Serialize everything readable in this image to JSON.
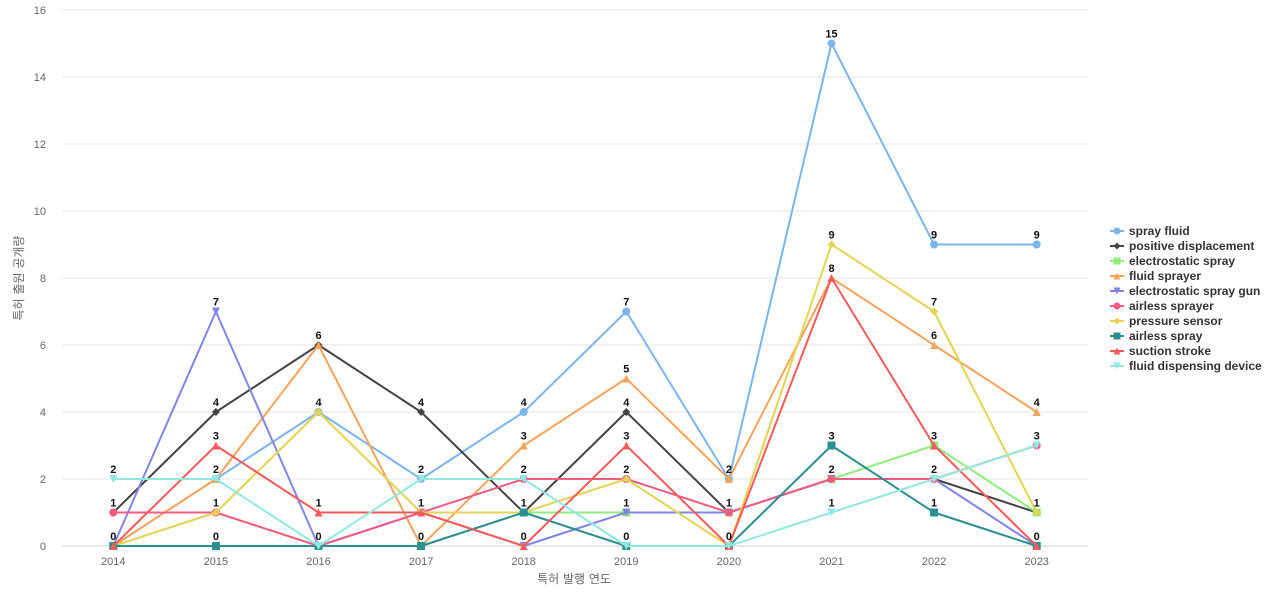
{
  "chart_data": {
    "type": "line",
    "title": "",
    "xlabel": "특허 발행 연도",
    "ylabel": "특허 출원 공개량",
    "ylim": [
      0,
      16
    ],
    "yticks": [
      0,
      2,
      4,
      6,
      8,
      10,
      12,
      14,
      16
    ],
    "grid": true,
    "legend_position": "right",
    "categories": [
      "2014",
      "2015",
      "2016",
      "2017",
      "2018",
      "2019",
      "2020",
      "2021",
      "2022",
      "2023"
    ],
    "series": [
      {
        "name": "spray fluid",
        "color": "#7cb5ec",
        "marker": "circle",
        "values": [
          0,
          2,
          4,
          2,
          4,
          7,
          2,
          15,
          9,
          9
        ]
      },
      {
        "name": "positive displacement",
        "color": "#434348",
        "marker": "diamond",
        "values": [
          1,
          4,
          6,
          4,
          1,
          4,
          1,
          2,
          2,
          1
        ]
      },
      {
        "name": "electrostatic spray",
        "color": "#90ed7d",
        "marker": "square",
        "values": [
          0,
          0,
          0,
          0,
          1,
          1,
          1,
          2,
          3,
          1
        ]
      },
      {
        "name": "fluid sprayer",
        "color": "#f7a35c",
        "marker": "triangle",
        "values": [
          0,
          2,
          6,
          0,
          3,
          5,
          2,
          8,
          6,
          4
        ]
      },
      {
        "name": "electrostatic spray gun",
        "color": "#8085e9",
        "marker": "triangle-down",
        "values": [
          0,
          7,
          0,
          1,
          0,
          1,
          1,
          2,
          2,
          0
        ]
      },
      {
        "name": "airless sprayer",
        "color": "#f15c80",
        "marker": "circle",
        "values": [
          1,
          1,
          0,
          1,
          2,
          2,
          1,
          2,
          2,
          3
        ]
      },
      {
        "name": "pressure sensor",
        "color": "#e4d354",
        "marker": "diamond",
        "values": [
          0,
          1,
          4,
          1,
          1,
          2,
          0,
          9,
          7,
          1
        ]
      },
      {
        "name": "airless spray",
        "color": "#2b908f",
        "marker": "square",
        "values": [
          0,
          0,
          0,
          0,
          1,
          0,
          0,
          3,
          1,
          0
        ]
      },
      {
        "name": "suction stroke",
        "color": "#f45b5b",
        "marker": "triangle",
        "values": [
          0,
          3,
          1,
          1,
          0,
          3,
          0,
          8,
          3,
          0
        ]
      },
      {
        "name": "fluid dispensing device",
        "color": "#91e8e1",
        "marker": "triangle-down",
        "values": [
          2,
          2,
          0,
          2,
          2,
          0,
          0,
          1,
          2,
          3
        ]
      }
    ],
    "data_labels": [
      {
        "x": "2014",
        "labels": [
          "2",
          "1",
          "0"
        ]
      },
      {
        "x": "2015",
        "labels": [
          "7",
          "4",
          "3",
          "2",
          "1",
          "0"
        ]
      },
      {
        "x": "2016",
        "labels": [
          "6",
          "4",
          "1",
          "0"
        ]
      },
      {
        "x": "2017",
        "labels": [
          "4",
          "2",
          "1",
          "0"
        ]
      },
      {
        "x": "2018",
        "labels": [
          "4",
          "3",
          "2",
          "1",
          "0"
        ]
      },
      {
        "x": "2019",
        "labels": [
          "7",
          "5",
          "4",
          "3",
          "2",
          "1",
          "0"
        ]
      },
      {
        "x": "2020",
        "labels": [
          "2",
          "1",
          "0"
        ]
      },
      {
        "x": "2021",
        "labels": [
          "15",
          "9",
          "8",
          "3",
          "2",
          "1"
        ]
      },
      {
        "x": "2022",
        "labels": [
          "9",
          "7",
          "6",
          "3",
          "2",
          "1"
        ]
      },
      {
        "x": "2023",
        "labels": [
          "9",
          "4",
          "3",
          "1",
          "0"
        ]
      }
    ]
  }
}
